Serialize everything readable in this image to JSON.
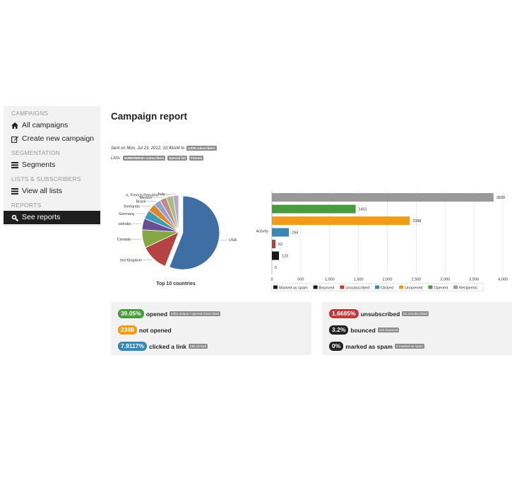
{
  "sidebar": {
    "sections": [
      {
        "title": "CAMPAIGNS",
        "items": [
          {
            "label": "All campaigns",
            "icon": "home-icon"
          },
          {
            "label": "Create new campaign",
            "icon": "edit-icon"
          }
        ]
      },
      {
        "title": "SEGMENTATION",
        "items": [
          {
            "label": "Segments",
            "icon": "list-icon"
          }
        ]
      },
      {
        "title": "LISTS & SUBSCRIBERS",
        "items": [
          {
            "label": "View all lists",
            "icon": "list-icon"
          }
        ]
      },
      {
        "title": "REPORTS",
        "items": [
          {
            "label": "See reports",
            "icon": "zoom-icon",
            "active": true
          }
        ]
      }
    ]
  },
  "page": {
    "title": "Campaign report",
    "sent_on": "Sent on Mon, Jul 23, 2012, 10:49AM to",
    "sent_count": "3,839 subscribers",
    "lists_label": "Lists:",
    "lists": [
      "SUBERMENA subscribers",
      "Special list",
      "Friends"
    ]
  },
  "pie_chart_data": {
    "type": "pie",
    "title": "Top 10 countries",
    "slices": [
      {
        "label": "USA",
        "value": 56,
        "color": "#3f6ea5"
      },
      {
        "label": "ted Kingdom",
        "value": 12,
        "color": "#b64343"
      },
      {
        "label": "Canada",
        "value": 8,
        "color": "#85a844"
      },
      {
        "label": "ustralia",
        "value": 5,
        "color": "#6b4f94"
      },
      {
        "label": "Germany",
        "value": 4,
        "color": "#3d9bb3"
      },
      {
        "label": "therlands",
        "value": 3.5,
        "color": "#e2862c"
      },
      {
        "label": "Brazil",
        "value": 3,
        "color": "#8ca5cc"
      },
      {
        "label": "Mexico",
        "value": 3,
        "color": "#c58b8b"
      },
      {
        "label": "e, French Republic",
        "value": 3,
        "color": "#a5c07e"
      },
      {
        "label": "Italy",
        "value": 2.5,
        "color": "#b8a9ce"
      }
    ]
  },
  "chart_data": {
    "type": "bar",
    "orientation": "horizontal",
    "category": "Activity",
    "series": [
      {
        "name": "Recipients",
        "value": 3839,
        "color": "#999999"
      },
      {
        "name": "Opened",
        "value": 1451,
        "color": "#4a9a3f"
      },
      {
        "name": "Unopened",
        "value": 2388,
        "color": "#f29a1a"
      },
      {
        "name": "Clicked",
        "value": 294,
        "color": "#3b86b4"
      },
      {
        "name": "Unsubscribed",
        "value": 62,
        "color": "#c0393b"
      },
      {
        "name": "Bounced",
        "value": 123,
        "color": "#1a1a1a"
      },
      {
        "name": "Marked as spam",
        "value": 0,
        "color": "#1a1a1a"
      }
    ],
    "xlim": [
      0,
      4000
    ],
    "xticks": [
      "0",
      "500",
      "1,000",
      "1,500",
      "2,000",
      "2,500",
      "3,000",
      "3,500",
      "4,000"
    ],
    "legend": [
      "Marked as spam",
      "Bounced",
      "Unsubscribed",
      "Clicked",
      "Unopened",
      "Opened",
      "Recipients"
    ],
    "grid": true,
    "legend_position": "bottom"
  },
  "stats": {
    "left": [
      {
        "pill": "39.05%",
        "color": "#4a9a3f",
        "label": "opened",
        "mini": "1451 unique / opened 2416 times"
      },
      {
        "pill": "2388",
        "color": "#f29a1a",
        "label": "not opened",
        "mini": ""
      },
      {
        "pill": "7.9117%",
        "color": "#3b86b4",
        "label": "clicked a link",
        "mini": "294 clicked"
      }
    ],
    "right": [
      {
        "pill": "1.6685%",
        "color": "#c0393b",
        "label": "unsubscribed",
        "mini": "62 unsubscribed"
      },
      {
        "pill": "3.2%",
        "color": "#222222",
        "label": "bounced",
        "mini": "123 bounced"
      },
      {
        "pill": "0%",
        "color": "#222222",
        "label": "marked as spam",
        "mini": "0 marked as spam"
      }
    ]
  }
}
